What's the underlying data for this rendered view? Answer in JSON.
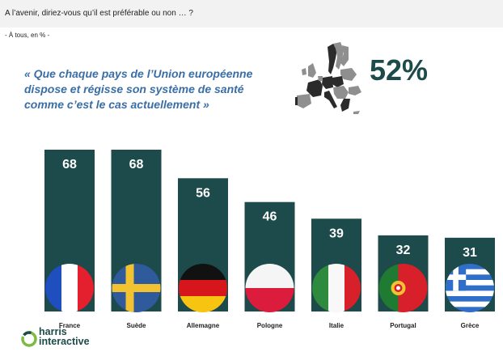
{
  "question": "A l’avenir, diriez-vous qu’il est préférable ou non … ?",
  "base": "-    À tous, en % -",
  "quote": "«  Que chaque pays de l’Union européenne dispose et régisse son système de santé comme c’est le cas actuellement »",
  "overall_value": "52%",
  "colors": {
    "bar": "#1d4a4a",
    "quote": "#3a6ea5",
    "map_gray": "#8f8f8f",
    "map_dark": "#2b2b2b"
  },
  "logo": {
    "line1": "harris",
    "line2": "interactive"
  },
  "chart_data": {
    "type": "bar",
    "categories": [
      "France",
      "Suède",
      "Allemagne",
      "Pologne",
      "Italie",
      "Portugal",
      "Grèce"
    ],
    "values": [
      68,
      68,
      56,
      46,
      39,
      32,
      31
    ],
    "flags": [
      "france-flag-icon",
      "sweden-flag-icon",
      "germany-flag-icon",
      "poland-flag-icon",
      "italy-flag-icon",
      "portugal-flag-icon",
      "greece-flag-icon"
    ],
    "title": "",
    "xlabel": "",
    "ylabel": "",
    "ylim": [
      0,
      68
    ]
  }
}
